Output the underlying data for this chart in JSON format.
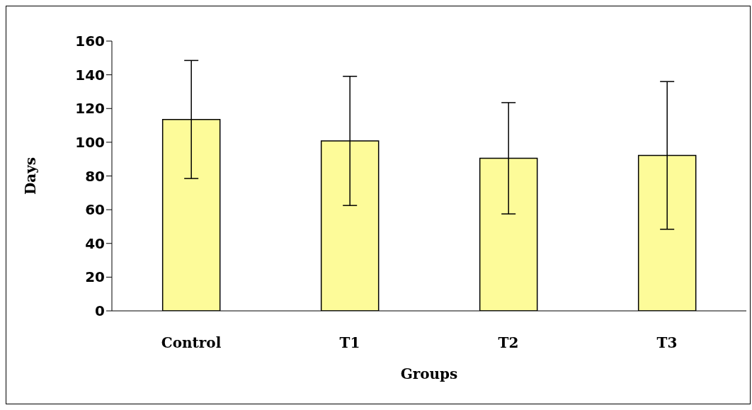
{
  "chart_data": {
    "type": "bar",
    "xlabel": "Groups",
    "ylabel": "Days",
    "categories": [
      "Control",
      "T1",
      "T2",
      "T3"
    ],
    "values": [
      113.5,
      100.8,
      90.5,
      92.2
    ],
    "errors": [
      35,
      38.3,
      33,
      43.8
    ],
    "color": "#fdfb99",
    "ylim": [
      0,
      160
    ],
    "yticks": [
      0,
      20,
      40,
      60,
      80,
      100,
      120,
      140,
      160
    ],
    "grid": false,
    "legend": false
  }
}
